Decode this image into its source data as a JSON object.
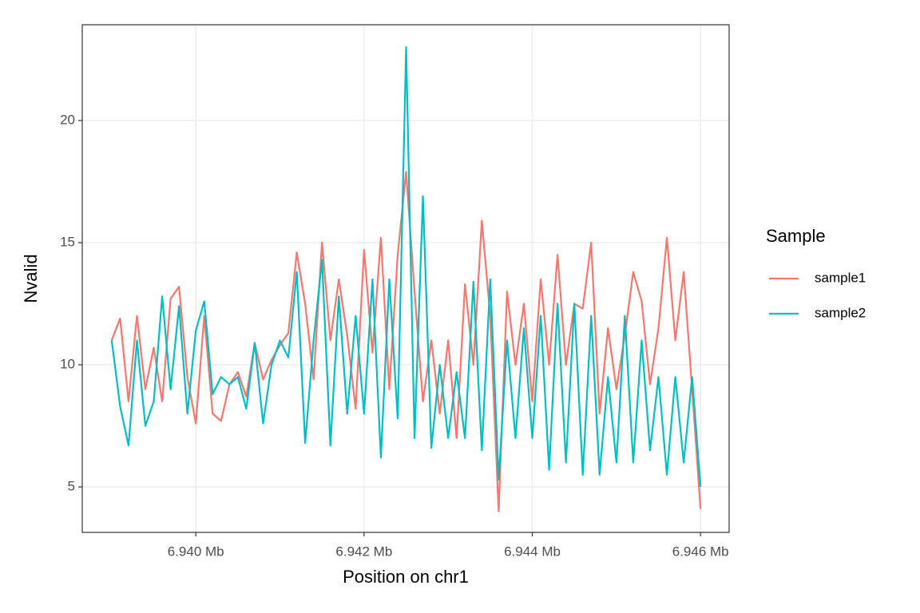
{
  "chart_data": {
    "type": "line",
    "x_label": "Position on chr1",
    "y_label": "Nvalid",
    "legend_title": "Sample",
    "x": [
      6.939,
      6.9391,
      6.9392,
      6.9393,
      6.9394,
      6.9395,
      6.9396,
      6.9397,
      6.9398,
      6.9399,
      6.94,
      6.9401,
      6.9402,
      6.9403,
      6.9404,
      6.9405,
      6.9406,
      6.9407,
      6.9408,
      6.9409,
      6.941,
      6.9411,
      6.9412,
      6.9413,
      6.9414,
      6.9415,
      6.9416,
      6.9417,
      6.9418,
      6.9419,
      6.942,
      6.9421,
      6.9422,
      6.9423,
      6.9424,
      6.9425,
      6.9426,
      6.9427,
      6.9428,
      6.9429,
      6.943,
      6.9431,
      6.9432,
      6.9433,
      6.9434,
      6.9435,
      6.9436,
      6.9437,
      6.9438,
      6.9439,
      6.944,
      6.9441,
      6.9442,
      6.9443,
      6.9444,
      6.9445,
      6.9446,
      6.9447,
      6.9448,
      6.9449,
      6.945,
      6.9451,
      6.9452,
      6.9453,
      6.9454,
      6.9455,
      6.9456,
      6.9457,
      6.9458,
      6.9459,
      6.946
    ],
    "series": [
      {
        "name": "sample1",
        "color": "#F8766D",
        "values": [
          11,
          11.9,
          8.5,
          12,
          9,
          10.7,
          8.5,
          12.7,
          13.2,
          9.5,
          7.6,
          12,
          8,
          7.7,
          9.2,
          9.7,
          8.7,
          10.9,
          9.4,
          10.2,
          10.8,
          11.3,
          14.6,
          12.5,
          9.4,
          15,
          11,
          13.5,
          11.2,
          8.2,
          14.7,
          10.5,
          15.2,
          9,
          14.5,
          17.9,
          13,
          8.5,
          11,
          8,
          11,
          7,
          13.3,
          10,
          15.9,
          12,
          4,
          13,
          10,
          12.5,
          8.5,
          13.5,
          10,
          14.5,
          10,
          12.5,
          12.3,
          15,
          8,
          11.5,
          9,
          11.2,
          13.8,
          12.6,
          9.2,
          11.5,
          15.2,
          11,
          13.8,
          9,
          4.1
        ]
      },
      {
        "name": "sample2",
        "color": "#00BFC4",
        "values": [
          11,
          8.3,
          6.7,
          11,
          7.5,
          8.5,
          12.8,
          9,
          12.4,
          8,
          11.4,
          12.6,
          8.8,
          9.5,
          9.2,
          9.5,
          8.2,
          10.9,
          7.6,
          10,
          11,
          10.3,
          13.8,
          6.8,
          11,
          14.3,
          6.7,
          12.8,
          8,
          12,
          8,
          13.5,
          6.2,
          13.5,
          7.8,
          23,
          7,
          16.9,
          6.6,
          10,
          7,
          9.7,
          7,
          13.4,
          6.5,
          13.5,
          5.3,
          11,
          7,
          11.5,
          7,
          12,
          5.7,
          12.5,
          6,
          12.5,
          5.5,
          12,
          5.5,
          9.5,
          6,
          12,
          6,
          11,
          6.5,
          9.5,
          5.5,
          9.5,
          6,
          9.5,
          5
        ]
      }
    ],
    "xlim": [
      6.93865,
      6.94634
    ],
    "ylim": [
      3.14,
      23.92
    ],
    "xticks": [
      {
        "value": 6.94,
        "label": "6.940 Mb"
      },
      {
        "value": 6.942,
        "label": "6.942 Mb"
      },
      {
        "value": 6.944,
        "label": "6.944 Mb"
      },
      {
        "value": 6.946,
        "label": "6.946 Mb"
      }
    ],
    "yticks": [
      5,
      10,
      15,
      20
    ],
    "grid": true,
    "legend_position": "right"
  }
}
